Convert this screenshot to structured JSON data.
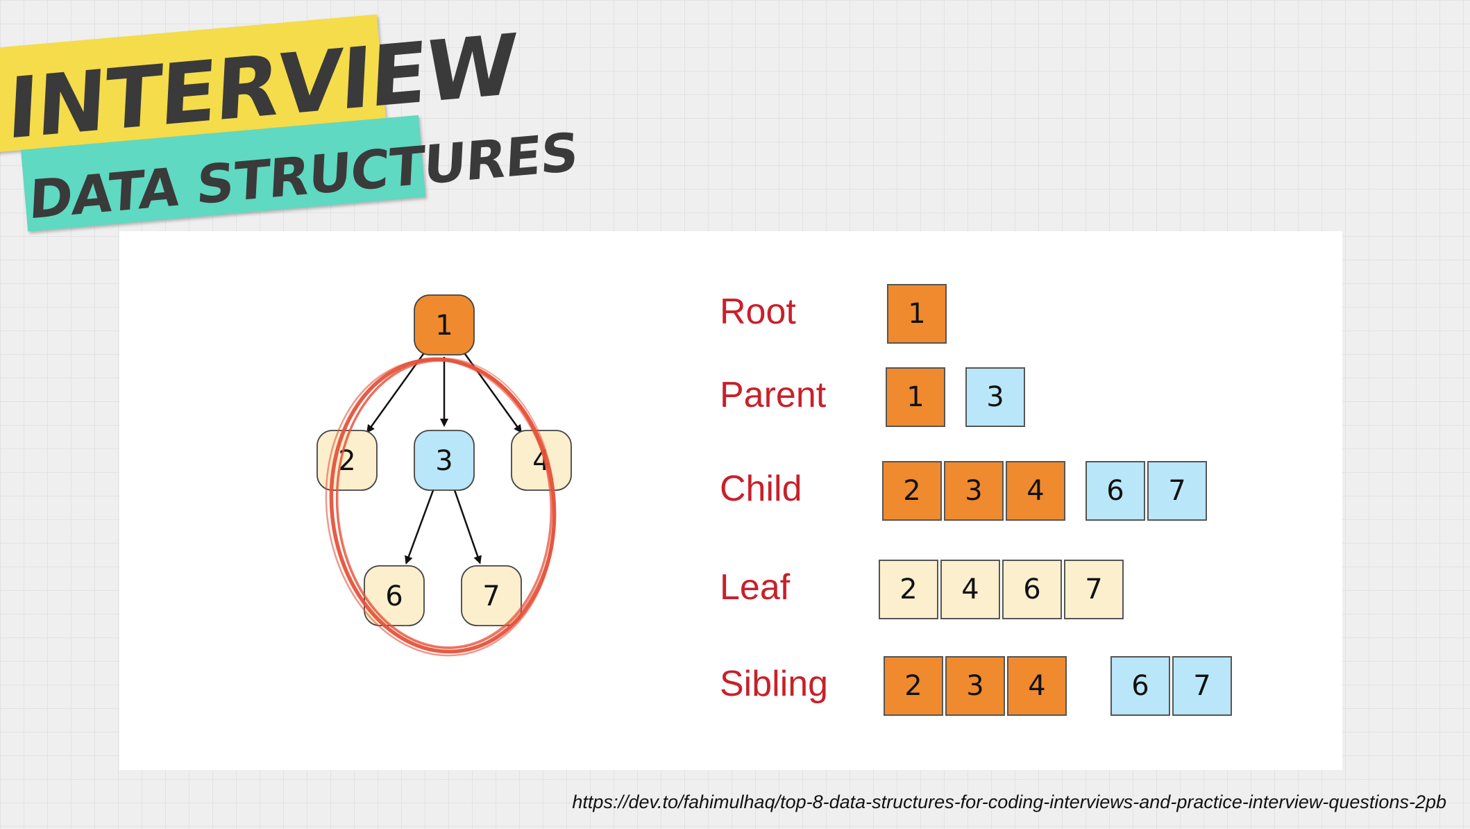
{
  "logo": {
    "line1": "INTERVIEW",
    "line2": "DATA STRUCTURES"
  },
  "tree": {
    "nodes": [
      {
        "id": "1",
        "label": "1",
        "kind": "orange"
      },
      {
        "id": "2",
        "label": "2",
        "kind": "cream"
      },
      {
        "id": "3",
        "label": "3",
        "kind": "blue"
      },
      {
        "id": "4",
        "label": "4",
        "kind": "cream"
      },
      {
        "id": "6",
        "label": "6",
        "kind": "cream"
      },
      {
        "id": "7",
        "label": "7",
        "kind": "cream"
      }
    ],
    "edges": [
      [
        "1",
        "2"
      ],
      [
        "1",
        "3"
      ],
      [
        "1",
        "4"
      ],
      [
        "3",
        "6"
      ],
      [
        "3",
        "7"
      ]
    ],
    "highlight_circle_color": "#e5533c"
  },
  "colors": {
    "orange": "#ef8a2e",
    "blue": "#b9e6f8",
    "cream": "#fbefcd",
    "term": "#c8202a"
  },
  "terms": [
    {
      "label": "Root",
      "groups": [
        [
          "1"
        ]
      ],
      "kinds": [
        [
          "orange"
        ]
      ]
    },
    {
      "label": "Parent",
      "groups": [
        [
          "1"
        ],
        [
          "3"
        ]
      ],
      "kinds": [
        [
          "orange"
        ],
        [
          "blue"
        ]
      ]
    },
    {
      "label": "Child",
      "groups": [
        [
          "2",
          "3",
          "4"
        ],
        [
          "6",
          "7"
        ]
      ],
      "kinds": [
        [
          "orange",
          "orange",
          "orange"
        ],
        [
          "blue",
          "blue"
        ]
      ]
    },
    {
      "label": "Leaf",
      "groups": [
        [
          "2",
          "4",
          "6",
          "7"
        ]
      ],
      "kinds": [
        [
          "cream",
          "cream",
          "cream",
          "cream"
        ]
      ]
    },
    {
      "label": "Sibling",
      "groups": [
        [
          "2",
          "3",
          "4"
        ],
        [
          "6",
          "7"
        ]
      ],
      "kinds": [
        [
          "orange",
          "orange",
          "orange"
        ],
        [
          "blue",
          "blue"
        ]
      ]
    }
  ],
  "source_url": "https://dev.to/fahimulhaq/top-8-data-structures-for-coding-interviews-and-practice-interview-questions-2pb"
}
